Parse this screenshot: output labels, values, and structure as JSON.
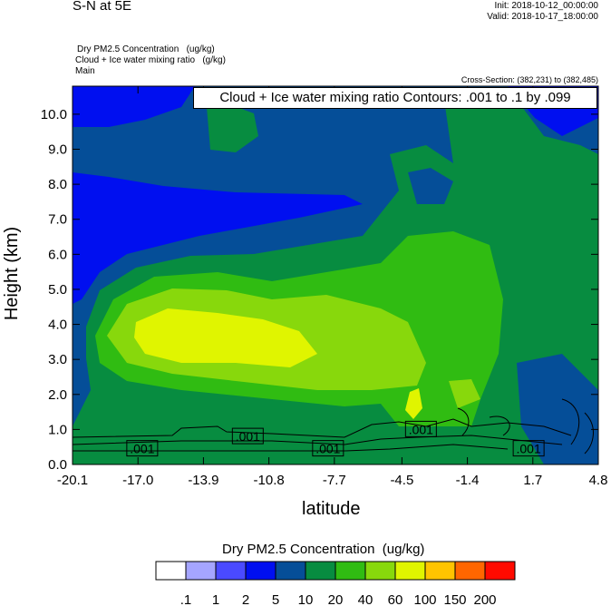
{
  "header": {
    "title": "S-N at 5E",
    "init": "Init: 2018-10-12_00:00:00",
    "valid": "Valid: 2018-10-17_18:00:00",
    "field_line1": "Dry PM2.5 Concentration   (ug/kg)",
    "field_line2": "Cloud + Ice water mixing ratio   (g/kg)",
    "field_line3": "Main",
    "cross_section": "Cross-Section: (382,231) to (382,485)"
  },
  "chart_data": {
    "type": "heatmap",
    "subtype": "filled contour cross-section with line contours",
    "contour_info": "Cloud + Ice water mixing ratio Contours: .001 to .1 by .099",
    "xlabel": "latitude",
    "ylabel": "Height (km)",
    "xlim": [
      -20.1,
      4.8
    ],
    "ylim": [
      0.0,
      10.8
    ],
    "x_ticks": [
      "-20.1",
      "-17.0",
      "-13.9",
      "-10.8",
      "-7.7",
      "-4.5",
      "-1.4",
      "1.7",
      "4.8"
    ],
    "x_tick_values": [
      -20.1,
      -17.0,
      -13.9,
      -10.8,
      -7.7,
      -4.5,
      -1.4,
      1.7,
      4.8
    ],
    "y_ticks": [
      "0.0",
      "1.0",
      "2.0",
      "3.0",
      "4.0",
      "5.0",
      "6.0",
      "7.0",
      "8.0",
      "9.0",
      "10.0"
    ],
    "y_tick_values": [
      0,
      1,
      2,
      3,
      4,
      5,
      6,
      7,
      8,
      9,
      10
    ],
    "contour_labels": [
      {
        "text": ".001",
        "lat": -16.8,
        "height": 0.45
      },
      {
        "text": ".001",
        "lat": -11.8,
        "height": 0.8
      },
      {
        "text": ".001",
        "lat": -8.0,
        "height": 0.45
      },
      {
        "text": ".001",
        "lat": -3.6,
        "height": 1.0
      },
      {
        "text": ".001",
        "lat": 1.5,
        "height": 0.45
      }
    ],
    "colorbar": {
      "title": "Dry PM2.5 Concentration  (ug/kg)",
      "labels": [
        ".1",
        "1",
        "2",
        "5",
        "10",
        "20",
        "40",
        "60",
        "100",
        "150",
        "200"
      ],
      "colors": [
        "#ffffff",
        "#a5a5ff",
        "#4a4aff",
        "#000ff0",
        "#054e98",
        "#078c40",
        "#30bc12",
        "#88d80c",
        "#e0f500",
        "#ffc400",
        "#ff6600",
        "#ff0a00"
      ]
    }
  }
}
